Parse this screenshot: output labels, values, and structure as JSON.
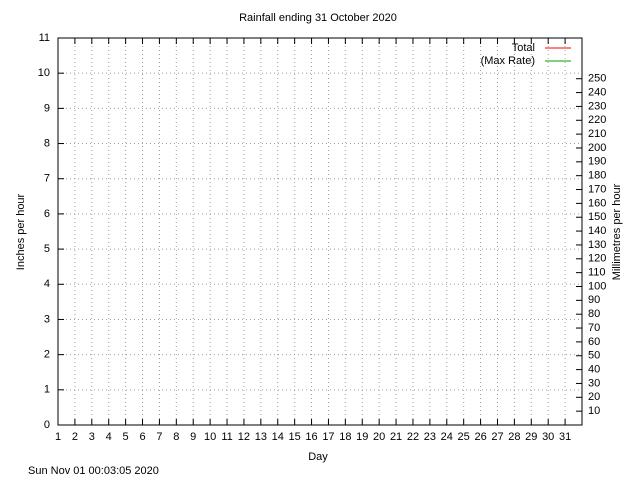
{
  "chart_data": {
    "type": "line",
    "title": "Rainfall ending 31 October 2020",
    "x_label": "Day",
    "y_label": "Inches per hour",
    "y2_label": "Millimetres per hour",
    "footer": "Sun Nov 01 00:03:05 2020",
    "x": [
      1,
      2,
      3,
      4,
      5,
      6,
      7,
      8,
      9,
      10,
      11,
      12,
      13,
      14,
      15,
      16,
      17,
      18,
      19,
      20,
      21,
      22,
      23,
      24,
      25,
      26,
      27,
      28,
      29,
      30,
      31
    ],
    "series": [
      {
        "name": "Total",
        "color": "#ff0000",
        "values": [
          null,
          null,
          null,
          null,
          null,
          null,
          null,
          null,
          null,
          null,
          null,
          null,
          null,
          null,
          null,
          null,
          null,
          null,
          null,
          null,
          null,
          null,
          null,
          null,
          null,
          null,
          null,
          null,
          null,
          null,
          null
        ]
      },
      {
        "name": "(Max Rate)",
        "color": "#00a000",
        "values": [
          null,
          null,
          null,
          null,
          null,
          null,
          null,
          null,
          null,
          null,
          null,
          null,
          null,
          null,
          null,
          null,
          null,
          null,
          null,
          null,
          null,
          null,
          null,
          null,
          null,
          null,
          null,
          null,
          null,
          null,
          null
        ]
      }
    ],
    "xlim": [
      1,
      32
    ],
    "xticks": [
      1,
      2,
      3,
      4,
      5,
      6,
      7,
      8,
      9,
      10,
      11,
      12,
      13,
      14,
      15,
      16,
      17,
      18,
      19,
      20,
      21,
      22,
      23,
      24,
      25,
      26,
      27,
      28,
      29,
      30,
      31
    ],
    "ylim": [
      0,
      11
    ],
    "yticks": [
      0,
      1,
      2,
      3,
      4,
      5,
      6,
      7,
      8,
      9,
      10,
      11
    ],
    "y2lim": [
      0,
      279.4
    ],
    "y2ticks": [
      10,
      20,
      30,
      40,
      50,
      60,
      70,
      80,
      90,
      100,
      110,
      120,
      130,
      140,
      150,
      160,
      170,
      180,
      190,
      200,
      210,
      220,
      230,
      240,
      250
    ],
    "grid": true,
    "legend": "top-right"
  }
}
